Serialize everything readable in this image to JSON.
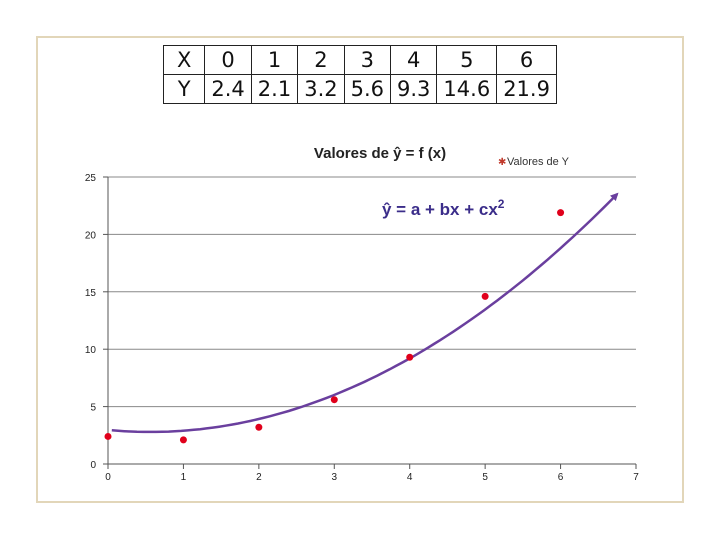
{
  "table": {
    "x_label": "X",
    "y_label": "Y",
    "x_values": [
      "0",
      "1",
      "2",
      "3",
      "4",
      "5",
      "6"
    ],
    "y_values": [
      "2.4",
      "2.1",
      "3.2",
      "5.6",
      "9.3",
      "14.6",
      "21.9"
    ]
  },
  "chart_data": {
    "type": "scatter",
    "title": "Valores de ŷ = f (x)",
    "legend_label": "Valores de Y",
    "legend_position": "top-right",
    "equation": {
      "text": "ŷ = a + bx + cx",
      "superscript": "2"
    },
    "x_ticks": [
      "0",
      "1",
      "2",
      "3",
      "4",
      "5",
      "6",
      "7"
    ],
    "y_ticks": [
      "0",
      "5",
      "10",
      "15",
      "20",
      "25"
    ],
    "xlim": [
      0,
      7
    ],
    "ylim": [
      0,
      25
    ],
    "grid": "horizontal",
    "series": [
      {
        "name": "Valores de Y",
        "x": [
          0,
          1,
          2,
          3,
          4,
          5,
          6
        ],
        "y": [
          2.4,
          2.1,
          3.2,
          5.6,
          9.3,
          14.6,
          21.9
        ]
      }
    ],
    "fit": {
      "a": 2.96,
      "b": -0.6,
      "c": 0.54,
      "x_range": [
        0.05,
        6.75
      ]
    },
    "colors": {
      "points": "#e0001b",
      "curve": "#6a3f9e",
      "equation": "#3b2d8a",
      "grid": "#888888"
    }
  }
}
